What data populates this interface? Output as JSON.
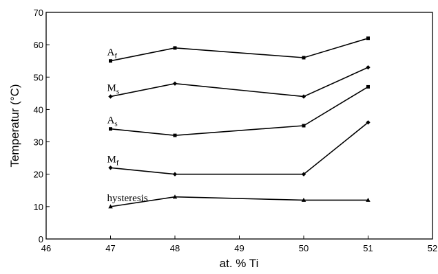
{
  "chart_data": {
    "type": "line",
    "xlabel": "at. % Ti",
    "ylabel": "Temperatur (°C)",
    "xlim": [
      46,
      52
    ],
    "ylim": [
      0,
      70
    ],
    "x_ticks": [
      46,
      47,
      48,
      49,
      50,
      51,
      52
    ],
    "y_ticks": [
      0,
      10,
      20,
      30,
      40,
      50,
      60,
      70
    ],
    "grid": false,
    "legend": "none",
    "series": [
      {
        "id": "af",
        "name": "A",
        "sub": "f",
        "marker": "square",
        "points": [
          [
            47,
            55
          ],
          [
            48,
            59
          ],
          [
            50,
            56
          ],
          [
            51,
            62
          ]
        ]
      },
      {
        "id": "ms",
        "name": "M",
        "sub": "s",
        "marker": "diamond",
        "points": [
          [
            47,
            44
          ],
          [
            48,
            48
          ],
          [
            50,
            44
          ],
          [
            51,
            53
          ]
        ]
      },
      {
        "id": "as",
        "name": "A",
        "sub": "s",
        "marker": "square",
        "points": [
          [
            47,
            34
          ],
          [
            48,
            32
          ],
          [
            50,
            35
          ],
          [
            51,
            47
          ]
        ]
      },
      {
        "id": "mf",
        "name": "M",
        "sub": "f",
        "marker": "diamond",
        "points": [
          [
            47,
            22
          ],
          [
            48,
            20
          ],
          [
            50,
            20
          ],
          [
            51,
            36
          ]
        ]
      },
      {
        "id": "hysteresis",
        "name": "hysteresis",
        "sub": "",
        "marker": "triangle",
        "points": [
          [
            47,
            10
          ],
          [
            48,
            13
          ],
          [
            50,
            12
          ],
          [
            51,
            12
          ]
        ]
      }
    ]
  }
}
